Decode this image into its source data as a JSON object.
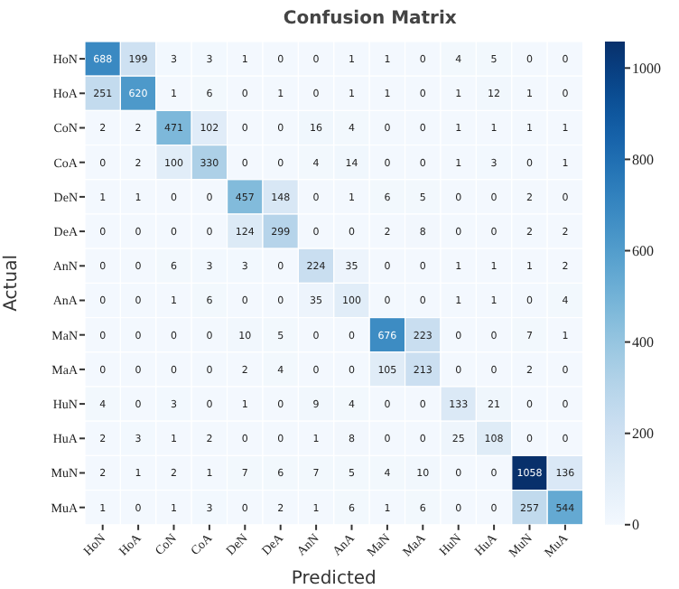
{
  "chart_data": {
    "type": "heatmap",
    "title": "Confusion Matrix",
    "xlabel": "Predicted",
    "ylabel": "Actual",
    "categories": [
      "HoN",
      "HoA",
      "CoN",
      "CoA",
      "DeN",
      "DeA",
      "AnN",
      "AnA",
      "MaN",
      "MaA",
      "HuN",
      "HuA",
      "MuN",
      "MuA"
    ],
    "y_categories": [
      "HoN",
      "HoA",
      "CoN",
      "CoA",
      "DeN",
      "DeA",
      "AnN",
      "AnA",
      "MaN",
      "MaA",
      "HuN",
      "HuA",
      "MuN",
      "MuA"
    ],
    "cells": [
      [
        688,
        199,
        3,
        3,
        1,
        0,
        0,
        1,
        1,
        0,
        4,
        5,
        0,
        0
      ],
      [
        251,
        620,
        1,
        6,
        0,
        1,
        0,
        1,
        1,
        0,
        1,
        12,
        1,
        0
      ],
      [
        2,
        2,
        471,
        102,
        0,
        0,
        16,
        4,
        0,
        0,
        1,
        1,
        1,
        1
      ],
      [
        0,
        2,
        100,
        330,
        0,
        0,
        4,
        14,
        0,
        0,
        1,
        3,
        0,
        1
      ],
      [
        1,
        1,
        0,
        0,
        457,
        148,
        0,
        1,
        6,
        5,
        0,
        0,
        2,
        0
      ],
      [
        0,
        0,
        0,
        0,
        124,
        299,
        0,
        0,
        2,
        8,
        0,
        0,
        2,
        2
      ],
      [
        0,
        0,
        6,
        3,
        3,
        0,
        224,
        35,
        0,
        0,
        1,
        1,
        1,
        2
      ],
      [
        0,
        0,
        1,
        6,
        0,
        0,
        35,
        100,
        0,
        0,
        1,
        1,
        0,
        4
      ],
      [
        0,
        0,
        0,
        0,
        10,
        5,
        0,
        0,
        676,
        223,
        0,
        0,
        7,
        1
      ],
      [
        0,
        0,
        0,
        0,
        2,
        4,
        0,
        0,
        105,
        213,
        0,
        0,
        2,
        0
      ],
      [
        4,
        0,
        3,
        0,
        1,
        0,
        9,
        4,
        0,
        0,
        133,
        21,
        0,
        0
      ],
      [
        2,
        3,
        1,
        2,
        0,
        0,
        1,
        8,
        0,
        0,
        25,
        108,
        0,
        0
      ],
      [
        2,
        1,
        2,
        1,
        7,
        6,
        7,
        5,
        4,
        10,
        0,
        0,
        1058,
        136
      ],
      [
        1,
        0,
        1,
        3,
        0,
        2,
        1,
        6,
        1,
        6,
        0,
        0,
        257,
        544
      ]
    ],
    "data_labels": true,
    "clim": [
      0,
      1058
    ],
    "cticks": [
      0,
      200,
      400,
      600,
      800,
      1000
    ]
  }
}
